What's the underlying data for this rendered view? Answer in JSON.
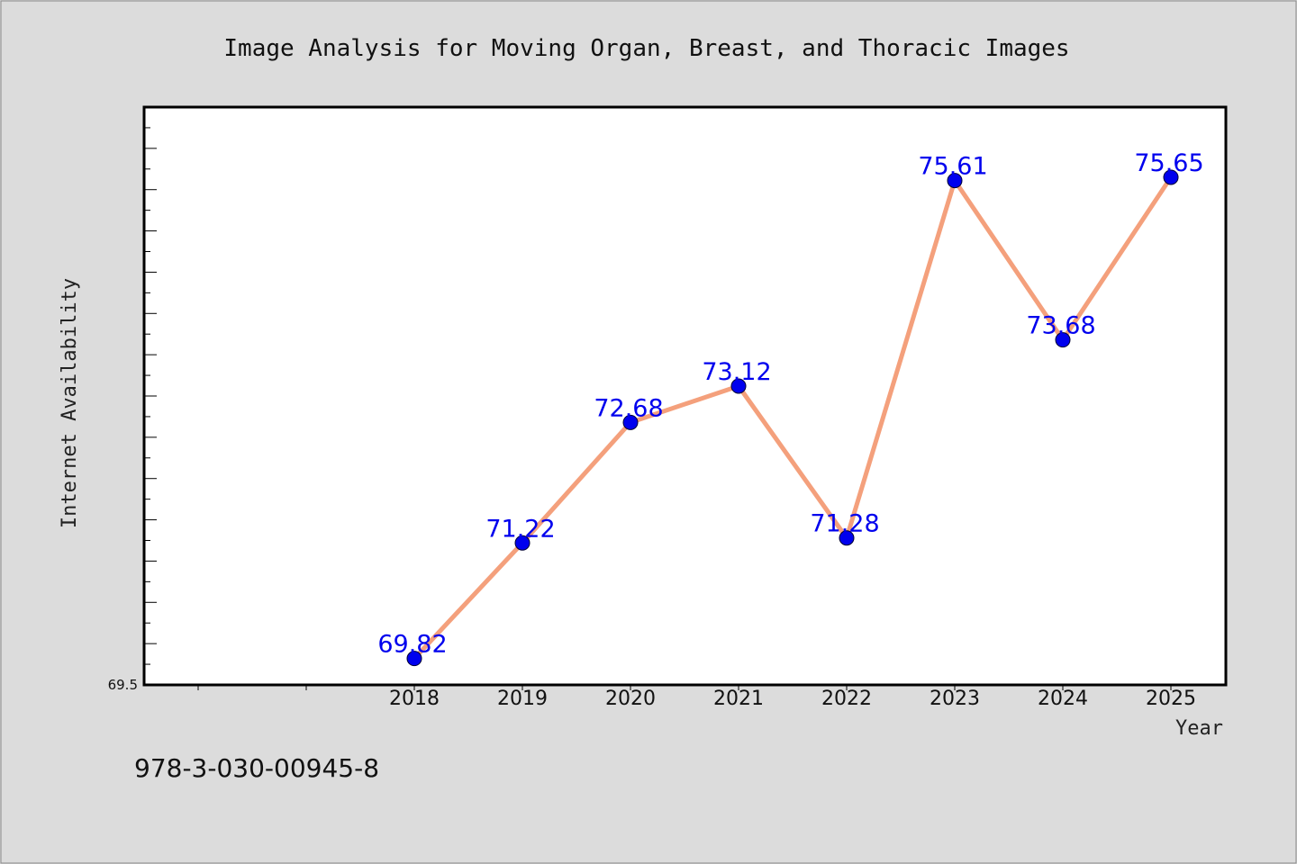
{
  "chart_data": {
    "type": "line",
    "title": "Image Analysis for Moving Organ, Breast, and Thoracic Images",
    "xlabel": "Year",
    "ylabel": "Internet Availability",
    "categories": [
      "2018",
      "2019",
      "2020",
      "2021",
      "2022",
      "2023",
      "2024",
      "2025"
    ],
    "series": [
      {
        "values": [
          69.82,
          71.22,
          72.68,
          73.12,
          71.28,
          75.61,
          73.68,
          75.65
        ],
        "labels": [
          "69.82",
          "71.22",
          "72.68",
          "73.12",
          "71.28",
          "75.61",
          "73.68",
          "75.65"
        ]
      }
    ],
    "y_min_label": "69.5",
    "ylim": [
      69.5,
      76.5
    ],
    "grid": false,
    "legend": "none",
    "colors": {
      "line": "#f4a07c",
      "marker": "#0000ee",
      "label": "#0000ee",
      "background": "#dcdcdc",
      "plot_background": "#ffffff"
    }
  },
  "footer": {
    "isbn": "978-3-030-00945-8"
  }
}
